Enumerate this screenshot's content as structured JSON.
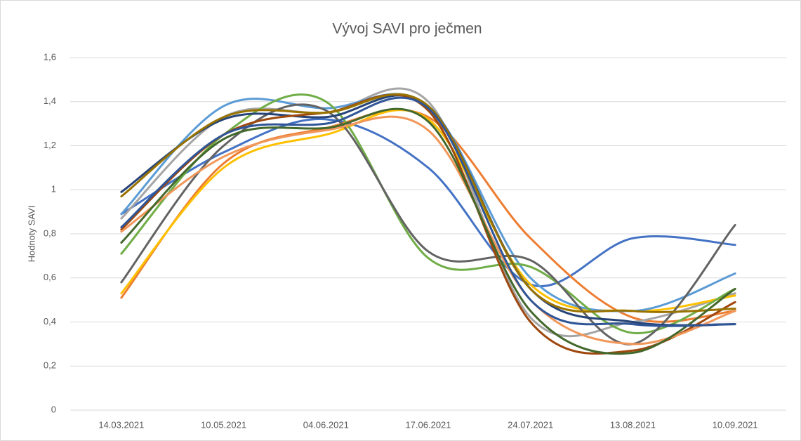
{
  "chart_data": {
    "type": "line",
    "title": "Vývoj SAVI pro ječmen",
    "y_label": "Hodnoty SAVI",
    "categories": [
      "14.03.2021",
      "10.05.2021",
      "04.06.2021",
      "17.06.2021",
      "24.07.2021",
      "13.08.2021",
      "10.09.2021"
    ],
    "ylim": [
      0,
      1.6
    ],
    "yticks": [
      0,
      {
        "value": 0.2,
        "label": "0,2"
      },
      {
        "value": 0.4,
        "label": "0,4"
      },
      {
        "value": 0.6,
        "label": "0,6"
      },
      {
        "value": 0.8,
        "label": "0,8"
      },
      1,
      {
        "value": 1.2,
        "label": "1,2"
      },
      {
        "value": 1.4,
        "label": "1,4"
      },
      {
        "value": 1.6,
        "label": "1,6"
      }
    ],
    "grid": true,
    "smooth": true,
    "series": [
      {
        "color": "#4472c4",
        "values": [
          0.89,
          1.17,
          1.32,
          1.1,
          0.57,
          0.78,
          0.75
        ]
      },
      {
        "color": "#ed7d31",
        "values": [
          0.51,
          1.12,
          1.28,
          1.33,
          0.78,
          0.42,
          0.45
        ]
      },
      {
        "color": "#a5a5a5",
        "values": [
          0.87,
          1.33,
          1.35,
          1.4,
          0.42,
          0.4,
          0.53
        ]
      },
      {
        "color": "#ffc000",
        "values": [
          0.53,
          1.1,
          1.25,
          1.32,
          0.57,
          0.45,
          0.52
        ]
      },
      {
        "color": "#5b9bd5",
        "values": [
          0.89,
          1.38,
          1.37,
          1.38,
          0.6,
          0.45,
          0.62
        ]
      },
      {
        "color": "#70ad47",
        "values": [
          0.71,
          1.25,
          1.4,
          0.69,
          0.65,
          0.35,
          0.55
        ]
      },
      {
        "color": "#636363",
        "values": [
          0.58,
          1.2,
          1.36,
          0.72,
          0.68,
          0.3,
          0.84
        ]
      },
      {
        "color": "#264478",
        "values": [
          0.99,
          1.32,
          1.33,
          1.38,
          0.55,
          0.4,
          0.39
        ]
      },
      {
        "color": "#9e480e",
        "values": [
          0.82,
          1.25,
          1.35,
          1.36,
          0.4,
          0.27,
          0.49
        ]
      },
      {
        "color": "#997300",
        "values": [
          0.97,
          1.33,
          1.35,
          1.38,
          0.55,
          0.45,
          0.46
        ]
      },
      {
        "color": "#f1975a",
        "values": [
          0.81,
          1.15,
          1.27,
          1.27,
          0.5,
          0.3,
          0.45
        ]
      },
      {
        "color": "#43682b",
        "values": [
          0.76,
          1.23,
          1.28,
          1.31,
          0.45,
          0.26,
          0.55
        ]
      },
      {
        "color": "#2f5597",
        "values": [
          0.83,
          1.25,
          1.3,
          1.37,
          0.5,
          0.39,
          0.39
        ]
      }
    ]
  }
}
